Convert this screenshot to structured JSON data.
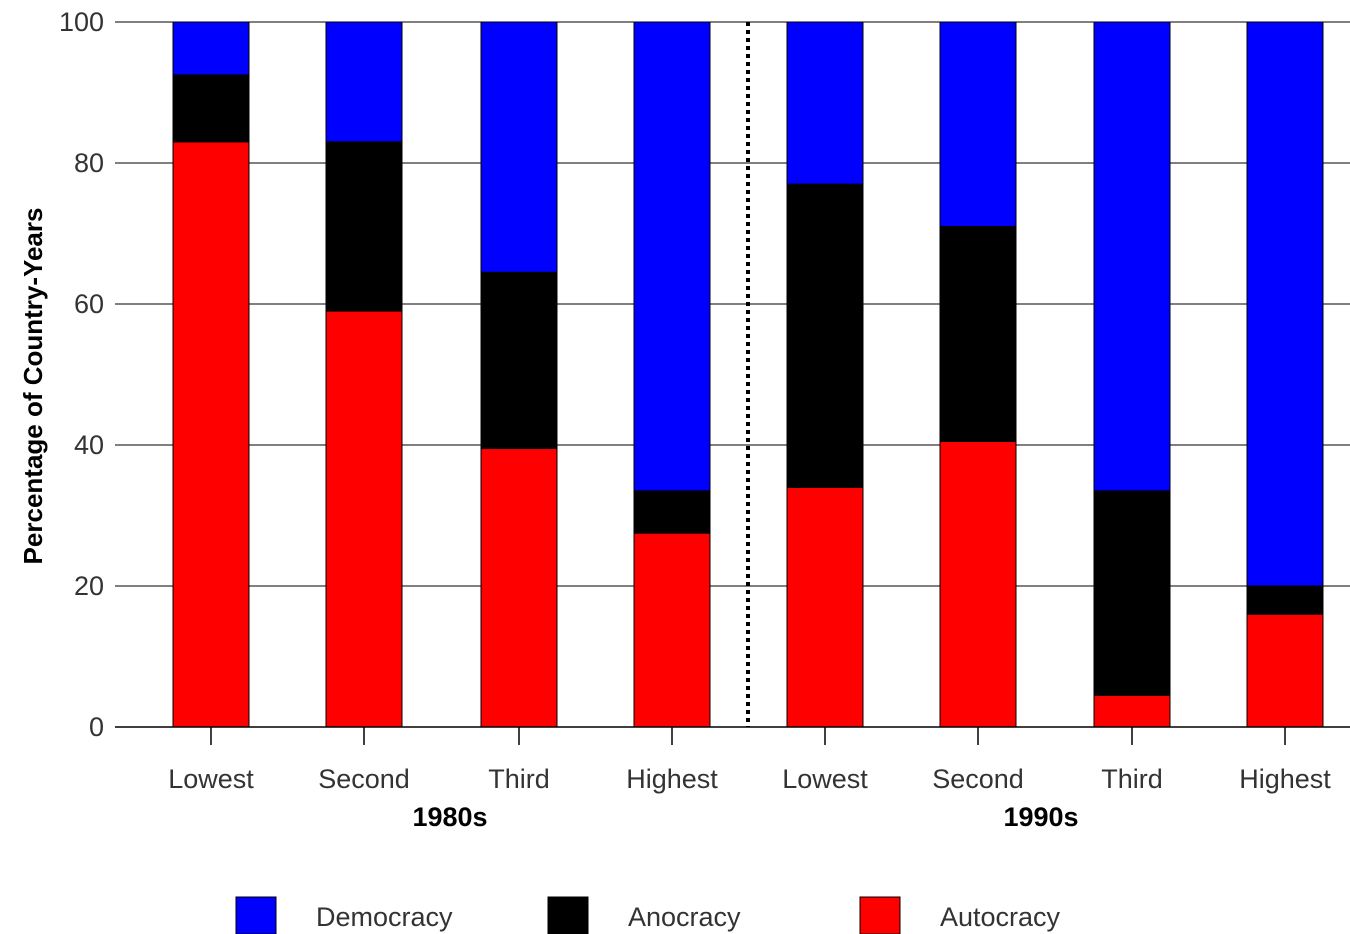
{
  "chart_data": {
    "type": "bar",
    "stacked": true,
    "title": "",
    "xlabel": "",
    "ylabel": "Percentage of Country-Years",
    "ylim": [
      0,
      100
    ],
    "yticks": [
      0,
      20,
      40,
      60,
      80,
      100
    ],
    "grid": "horizontal",
    "legend_position": "bottom",
    "categories": [
      "Lowest",
      "Second",
      "Third",
      "Highest",
      "Lowest",
      "Second",
      "Third",
      "Highest"
    ],
    "groups": [
      {
        "label": "1980s",
        "categories": [
          "Lowest",
          "Second",
          "Third",
          "Highest"
        ]
      },
      {
        "label": "1990s",
        "categories": [
          "Lowest",
          "Second",
          "Third",
          "Highest"
        ]
      }
    ],
    "series": [
      {
        "name": "Autocracy",
        "color": "#ff0000",
        "values": [
          83,
          59,
          39.5,
          27.5,
          34,
          40.5,
          4.5,
          16
        ]
      },
      {
        "name": "Anocracy",
        "color": "#000000",
        "values": [
          9.5,
          24,
          25,
          6,
          43,
          30.5,
          29,
          4
        ]
      },
      {
        "name": "Democracy",
        "color": "#0000ff",
        "values": [
          7.5,
          17,
          35.5,
          66.5,
          23,
          29,
          66.5,
          80
        ]
      }
    ]
  }
}
